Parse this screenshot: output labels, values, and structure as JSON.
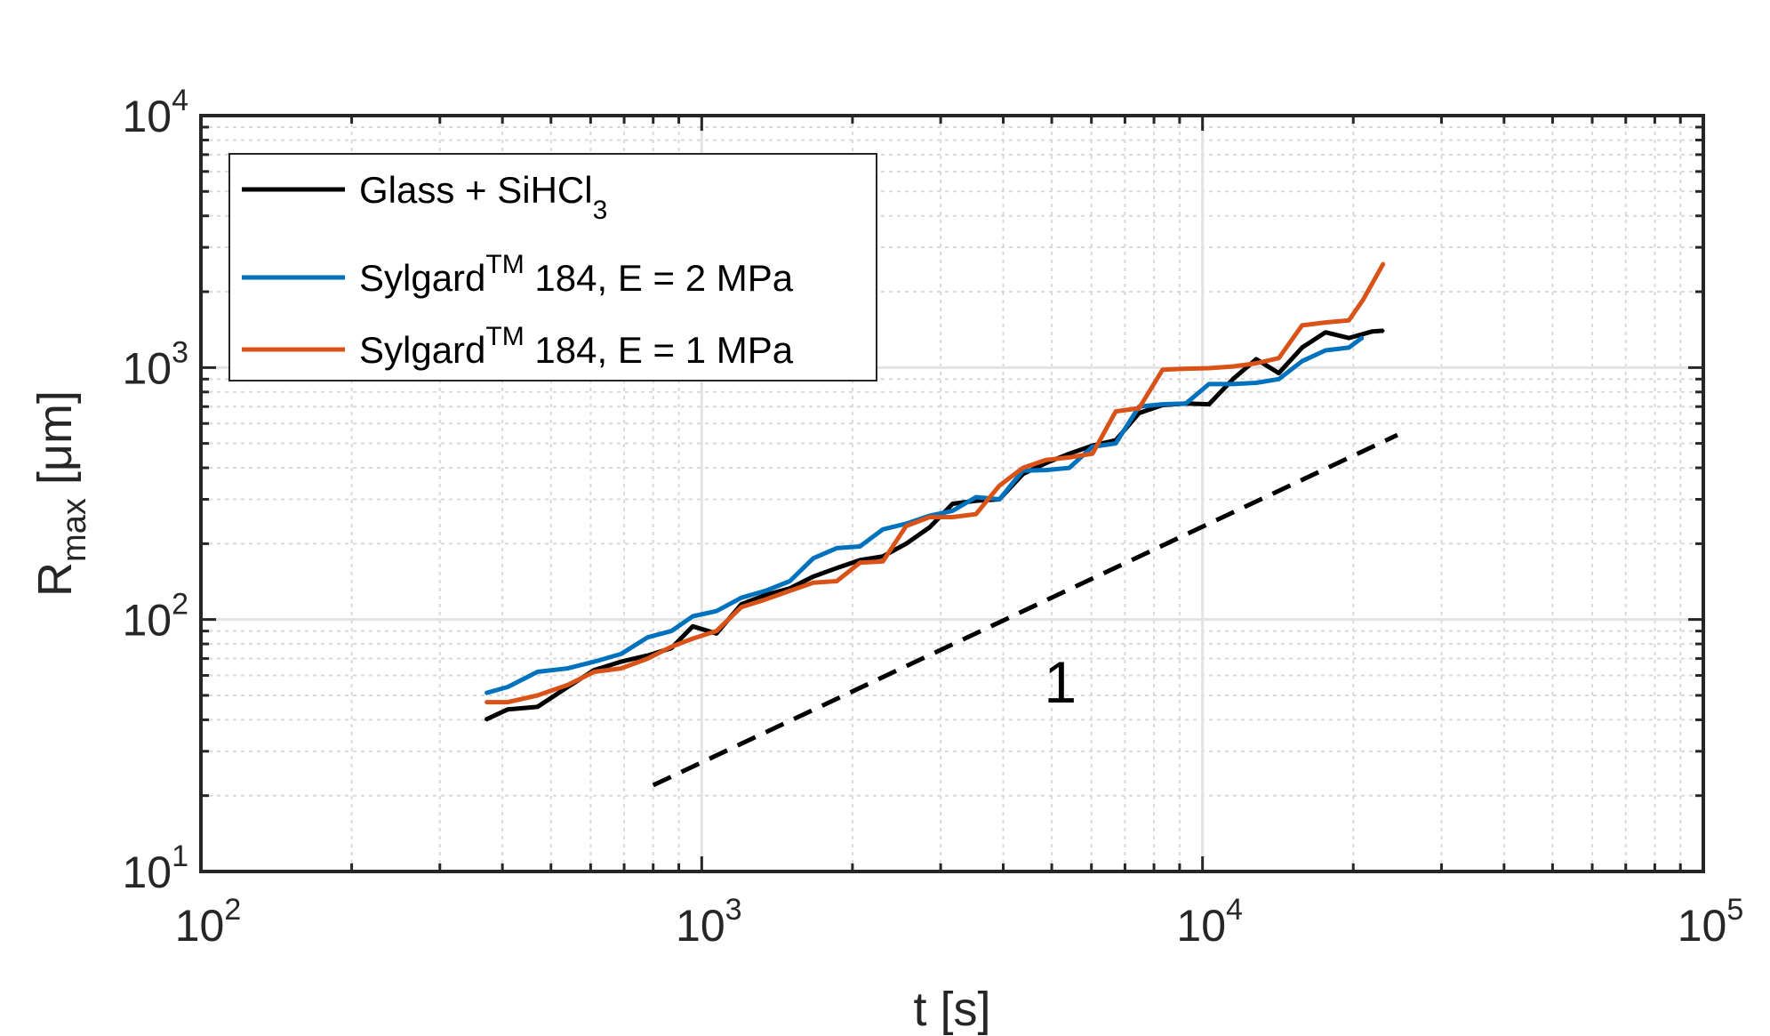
{
  "chart_data": {
    "type": "line",
    "xscale": "log",
    "yscale": "log",
    "xlim": [
      100,
      100000
    ],
    "ylim": [
      10,
      10000
    ],
    "xlabel": "t [s]",
    "ylabel": {
      "base": "R",
      "sub": "max",
      "rest": " [μm]"
    },
    "xticks": [
      {
        "base": "10",
        "exp": "2",
        "value": 100
      },
      {
        "base": "10",
        "exp": "3",
        "value": 1000
      },
      {
        "base": "10",
        "exp": "4",
        "value": 10000
      },
      {
        "base": "10",
        "exp": "5",
        "value": 100000
      }
    ],
    "yticks": [
      {
        "base": "10",
        "exp": "1",
        "value": 10
      },
      {
        "base": "10",
        "exp": "2",
        "value": 100
      },
      {
        "base": "10",
        "exp": "3",
        "value": 1000
      },
      {
        "base": "10",
        "exp": "4",
        "value": 10000
      }
    ],
    "grid": true,
    "minor_grid": true,
    "legend_position": "top-left",
    "series": [
      {
        "name": "Glass + SiHCl3",
        "legend": {
          "text": "Glass + SiHCl",
          "sub": "3",
          "sup": "",
          "rest": ""
        },
        "color": "#000000",
        "x": [
          370,
          410,
          470,
          540,
          610,
          690,
          780,
          870,
          960,
          1070,
          1200,
          1340,
          1500,
          1670,
          1860,
          2070,
          2300,
          2560,
          2850,
          3170,
          3530,
          3930,
          4380,
          4870,
          5420,
          6030,
          6710,
          7470,
          8320,
          9260,
          10300,
          11500,
          12800,
          14200,
          15800,
          17600,
          19600,
          21800,
          23000
        ],
        "y": [
          40,
          44,
          45,
          54,
          63,
          68,
          72,
          77,
          94,
          88,
          115,
          125,
          133,
          148,
          160,
          172,
          178,
          200,
          232,
          288,
          296,
          300,
          378,
          418,
          455,
          490,
          515,
          660,
          710,
          720,
          715,
          900,
          1080,
          950,
          1200,
          1380,
          1310,
          1390,
          1400
        ]
      },
      {
        "name": "Sylgard™ 184, E = 2 MPa",
        "legend": {
          "text": "Sylgard",
          "sub": "",
          "sup": "TM",
          "rest": " 184, E = 2 MPa"
        },
        "color": "#0072BD",
        "x": [
          370,
          410,
          470,
          540,
          610,
          690,
          780,
          870,
          960,
          1070,
          1200,
          1340,
          1500,
          1670,
          1860,
          2070,
          2300,
          2560,
          2850,
          3170,
          3530,
          3930,
          4380,
          4870,
          5420,
          6030,
          6710,
          7470,
          8320,
          9260,
          10300,
          11500,
          12800,
          14200,
          15800,
          17600,
          19600,
          20900
        ],
        "y": [
          51,
          54,
          62,
          64,
          68,
          73,
          85,
          90,
          103,
          108,
          122,
          130,
          142,
          175,
          192,
          195,
          228,
          240,
          258,
          270,
          306,
          300,
          390,
          392,
          400,
          485,
          500,
          700,
          715,
          720,
          860,
          860,
          870,
          900,
          1060,
          1170,
          1200,
          1320
        ]
      },
      {
        "name": "Sylgard™ 184, E = 1 MPa",
        "legend": {
          "text": "Sylgard",
          "sub": "",
          "sup": "TM",
          "rest": " 184, E = 1 MPa"
        },
        "color": "#D95319",
        "x": [
          370,
          410,
          470,
          540,
          610,
          690,
          780,
          870,
          960,
          1070,
          1200,
          1340,
          1500,
          1670,
          1860,
          2070,
          2300,
          2560,
          2850,
          3170,
          3530,
          3930,
          4380,
          4870,
          5420,
          6030,
          6710,
          7470,
          8320,
          9260,
          10300,
          11500,
          12800,
          14200,
          15800,
          17600,
          19600,
          20900,
          23000
        ],
        "y": [
          47,
          47,
          50,
          55,
          62,
          64,
          70,
          78,
          84,
          90,
          112,
          120,
          130,
          140,
          142,
          168,
          170,
          235,
          255,
          255,
          262,
          340,
          400,
          430,
          440,
          455,
          670,
          690,
          980,
          990,
          995,
          1010,
          1040,
          1090,
          1470,
          1510,
          1540,
          1850,
          2600
        ]
      }
    ],
    "reference_line": {
      "style": "dashed",
      "color": "#000000",
      "x": [
        800,
        24500
      ],
      "y": [
        22,
        540
      ],
      "label": "1",
      "label_at": {
        "x": 5200,
        "y": 56
      }
    }
  }
}
